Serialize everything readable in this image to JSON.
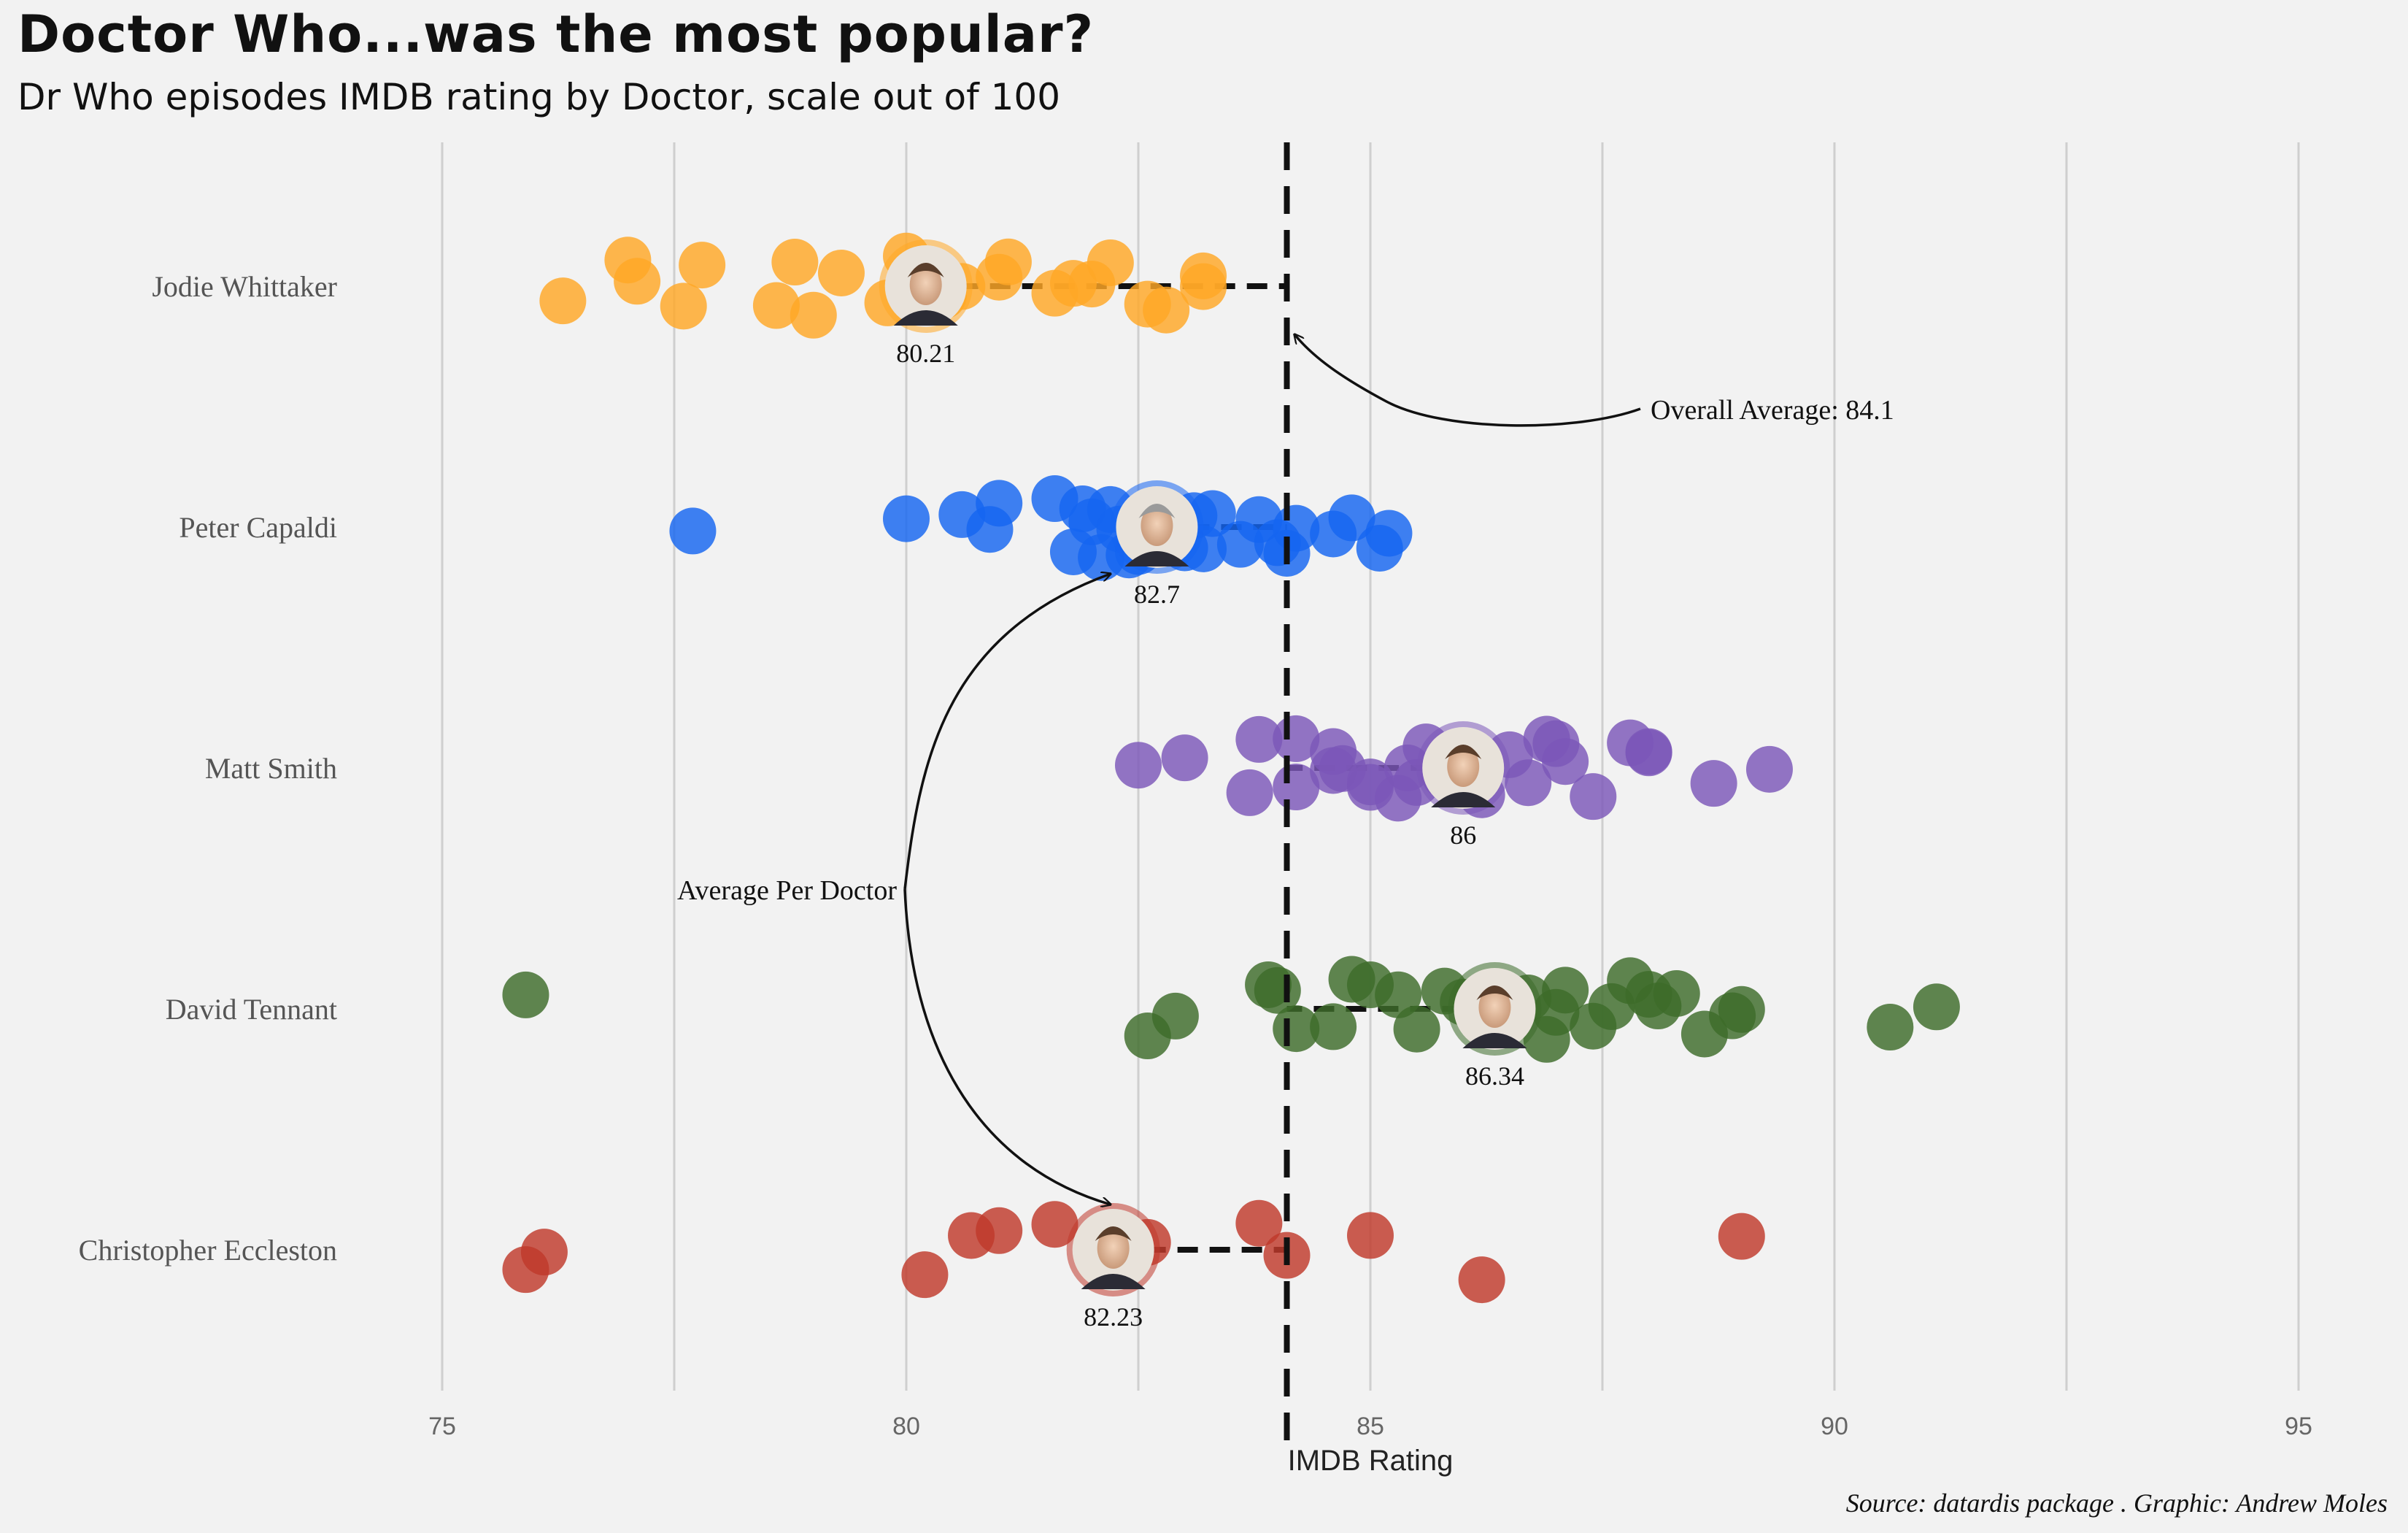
{
  "title": "Doctor Who...was the most popular?",
  "subtitle": "Dr Who episodes IMDB rating by Doctor, scale out of 100",
  "caption": "Source: datardis package . Graphic: Andrew Moles",
  "chart_data": {
    "type": "scatter",
    "xlabel": "IMDB Rating",
    "xlim": [
      75,
      95
    ],
    "xticks": [
      75,
      80,
      85,
      90,
      95
    ],
    "grid": true,
    "overall_average": 84.1,
    "annotations": {
      "overall": "Overall Average: 84.1",
      "per_doctor": "Average Per Doctor"
    },
    "series": [
      {
        "name": "Jodie Whittaker",
        "color": "#ffa726",
        "mean": 80.21,
        "mean_label": "80.21",
        "values": [
          76.3,
          77.0,
          77.1,
          77.6,
          77.8,
          78.6,
          78.8,
          79.0,
          79.3,
          79.8,
          80.0,
          80.2,
          80.4,
          80.6,
          81.1,
          81.0,
          81.6,
          81.8,
          82.0,
          82.2,
          82.6,
          82.8,
          83.2,
          83.2
        ]
      },
      {
        "name": "Peter Capaldi",
        "color": "#1565f0",
        "mean": 82.7,
        "mean_label": "82.7",
        "values": [
          77.7,
          80.0,
          80.6,
          80.9,
          81.0,
          81.6,
          81.8,
          81.9,
          82.0,
          82.1,
          82.2,
          82.3,
          82.4,
          82.5,
          82.6,
          82.9,
          83.0,
          83.1,
          83.2,
          83.3,
          83.6,
          83.8,
          84.0,
          84.1,
          84.2,
          84.6,
          84.8,
          85.1,
          85.2
        ]
      },
      {
        "name": "Matt Smith",
        "color": "#7b57b8",
        "mean": 86.0,
        "mean_label": "86",
        "values": [
          82.5,
          83.0,
          83.7,
          83.8,
          84.2,
          84.2,
          84.6,
          84.6,
          84.7,
          85.0,
          85.0,
          85.3,
          85.4,
          85.5,
          85.6,
          85.8,
          86.2,
          86.5,
          86.7,
          86.9,
          87.0,
          87.1,
          87.4,
          87.8,
          88.0,
          88.0,
          88.7,
          89.3
        ]
      },
      {
        "name": "David Tennant",
        "color": "#3d6b2a",
        "mean": 86.34,
        "mean_label": "86.34",
        "values": [
          75.9,
          82.6,
          82.9,
          83.9,
          84.0,
          84.2,
          84.6,
          84.8,
          85.0,
          85.3,
          85.5,
          85.8,
          86.0,
          86.2,
          86.4,
          86.7,
          86.9,
          87.0,
          87.1,
          87.4,
          87.6,
          87.8,
          88.0,
          88.1,
          88.3,
          88.6,
          88.9,
          89.0,
          90.6,
          91.1
        ]
      },
      {
        "name": "Christopher Eccleston",
        "color": "#c0392b",
        "mean": 82.23,
        "mean_label": "82.23",
        "values": [
          75.9,
          76.1,
          80.2,
          80.7,
          81.0,
          81.6,
          82.6,
          83.8,
          84.1,
          85.0,
          86.2,
          89.0
        ]
      }
    ]
  }
}
